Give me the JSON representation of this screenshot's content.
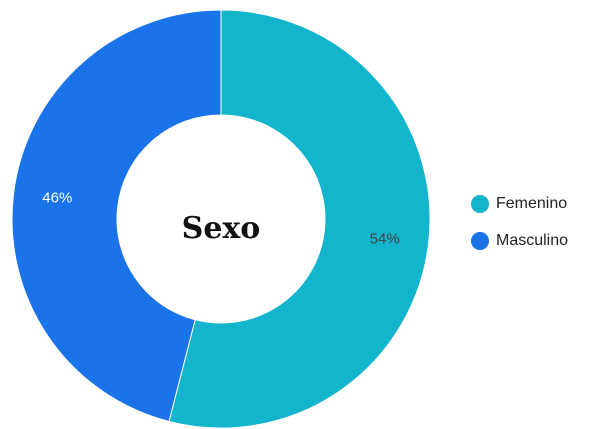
{
  "chart_data": {
    "type": "donut",
    "title": "Sexo",
    "categories": [
      "Femenino",
      "Masculino"
    ],
    "values": [
      54,
      46
    ],
    "value_labels": [
      "54%",
      "46%"
    ],
    "colors": [
      "#12b5cb",
      "#1a73e8"
    ],
    "label_colors": [
      "#444444",
      "#ffffff"
    ],
    "legend": "right"
  }
}
